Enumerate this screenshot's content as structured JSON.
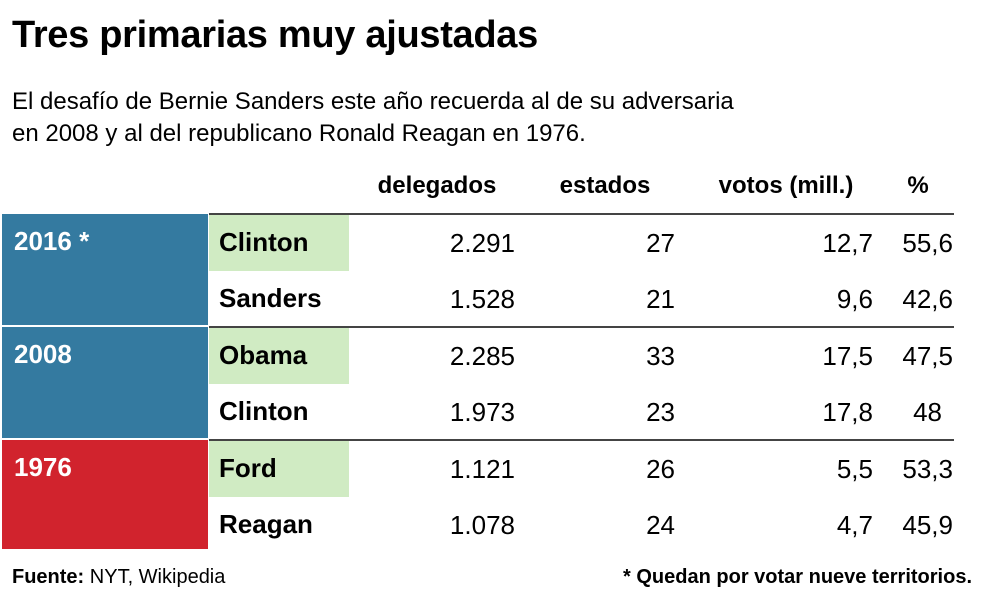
{
  "title": "Tres primarias muy ajustadas",
  "subtitle_lines": [
    "El desafío de Bernie Sanders este año recuerda al de su adversaria",
    "en 2008 y al del republicano Ronald Reagan en 1976."
  ],
  "colors": {
    "democrat": "#347aa0",
    "republican": "#d1232d",
    "winner": "#d0ebc3"
  },
  "chart_data": {
    "type": "table",
    "columns": [
      "delegados",
      "estados",
      "votos (mill.)",
      "%"
    ],
    "groups": [
      {
        "year": "2016 *",
        "rows": [
          {
            "name": "Clinton",
            "winner": true,
            "values": [
              "2.291",
              "27",
              "12,7",
              "55,6"
            ]
          },
          {
            "name": "Sanders",
            "winner": false,
            "values": [
              "1.528",
              "21",
              "9,6",
              "42,6"
            ]
          }
        ]
      },
      {
        "year": "2008",
        "rows": [
          {
            "name": "Obama",
            "winner": true,
            "values": [
              "2.285",
              "33",
              "17,5",
              "47,5"
            ]
          },
          {
            "name": "Clinton",
            "winner": false,
            "values": [
              "1.973",
              "23",
              "17,8",
              "48"
            ]
          }
        ]
      },
      {
        "year": "1976",
        "rows": [
          {
            "name": "Ford",
            "winner": true,
            "values": [
              "1.121",
              "26",
              "5,5",
              "53,3"
            ]
          },
          {
            "name": "Reagan",
            "winner": false,
            "values": [
              "1.078",
              "24",
              "4,7",
              "45,9"
            ]
          }
        ]
      }
    ]
  },
  "footer": {
    "source_label": "Fuente:",
    "source": "NYT, Wikipedia",
    "note": "* Quedan por votar nueve territorios."
  }
}
